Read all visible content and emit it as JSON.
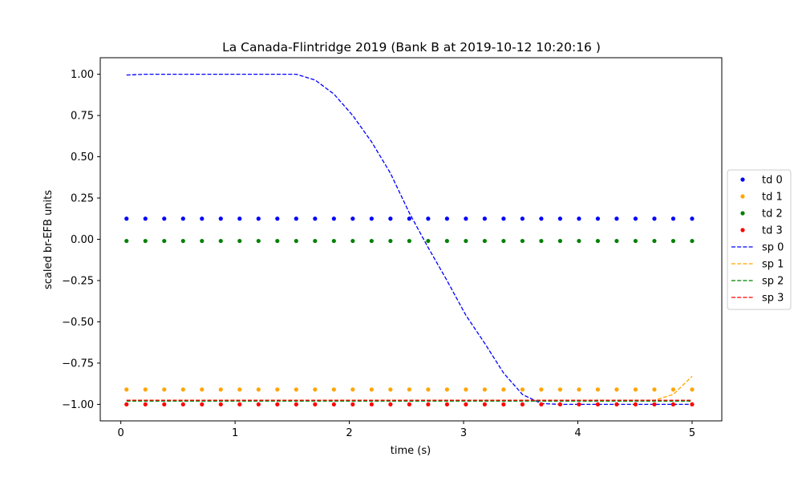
{
  "chart_data": {
    "type": "scatter",
    "title": "La Canada-Flintridge 2019 (Bank B at 2019-10-12 10:20:16 )",
    "xlabel": "time (s)",
    "ylabel": "scaled br-EFB units",
    "xlim": [
      -0.18,
      5.26
    ],
    "ylim": [
      -1.1,
      1.1
    ],
    "xticks": [
      0,
      1,
      2,
      3,
      4,
      5
    ],
    "xtick_labels": [
      "0",
      "1",
      "2",
      "3",
      "4",
      "5"
    ],
    "yticks": [
      -1.0,
      -0.75,
      -0.5,
      -0.25,
      0.0,
      0.25,
      0.5,
      0.75,
      1.0
    ],
    "ytick_labels": [
      "−1.00",
      "−0.75",
      "−0.50",
      "−0.25",
      "0.00",
      "0.25",
      "0.50",
      "0.75",
      "1.00"
    ],
    "grid": false,
    "legend_position": "right",
    "x": [
      0.05,
      0.215,
      0.38,
      0.545,
      0.71,
      0.875,
      1.04,
      1.205,
      1.37,
      1.535,
      1.7,
      1.865,
      2.03,
      2.195,
      2.36,
      2.525,
      2.69,
      2.855,
      3.02,
      3.185,
      3.35,
      3.515,
      3.68,
      3.845,
      4.01,
      4.175,
      4.34,
      4.505,
      4.67,
      4.835,
      5.0
    ],
    "series": [
      {
        "name": "td 0",
        "kind": "points",
        "color": "#0000ff",
        "y": [
          0.125,
          0.125,
          0.125,
          0.125,
          0.125,
          0.125,
          0.125,
          0.125,
          0.125,
          0.125,
          0.125,
          0.125,
          0.125,
          0.125,
          0.125,
          0.125,
          0.125,
          0.125,
          0.125,
          0.125,
          0.125,
          0.125,
          0.125,
          0.125,
          0.125,
          0.125,
          0.125,
          0.125,
          0.125,
          0.125,
          0.125
        ]
      },
      {
        "name": "td 1",
        "kind": "points",
        "color": "#ffa500",
        "y": [
          -0.91,
          -0.91,
          -0.91,
          -0.91,
          -0.91,
          -0.91,
          -0.91,
          -0.91,
          -0.91,
          -0.91,
          -0.91,
          -0.91,
          -0.91,
          -0.91,
          -0.91,
          -0.91,
          -0.91,
          -0.91,
          -0.91,
          -0.91,
          -0.91,
          -0.91,
          -0.91,
          -0.91,
          -0.91,
          -0.91,
          -0.91,
          -0.91,
          -0.91,
          -0.91,
          -0.91
        ]
      },
      {
        "name": "td 2",
        "kind": "points",
        "color": "#008000",
        "y": [
          -0.01,
          -0.01,
          -0.01,
          -0.01,
          -0.01,
          -0.01,
          -0.01,
          -0.01,
          -0.01,
          -0.01,
          -0.01,
          -0.01,
          -0.01,
          -0.01,
          -0.01,
          -0.01,
          -0.01,
          -0.01,
          -0.01,
          -0.01,
          -0.01,
          -0.01,
          -0.01,
          -0.01,
          -0.01,
          -0.01,
          -0.01,
          -0.01,
          -0.01,
          -0.01,
          -0.01
        ]
      },
      {
        "name": "td 3",
        "kind": "points",
        "color": "#ff0000",
        "y": [
          -1.0,
          -1.0,
          -1.0,
          -1.0,
          -1.0,
          -1.0,
          -1.0,
          -1.0,
          -1.0,
          -1.0,
          -1.0,
          -1.0,
          -1.0,
          -1.0,
          -1.0,
          -1.0,
          -1.0,
          -1.0,
          -1.0,
          -1.0,
          -1.0,
          -1.0,
          -1.0,
          -1.0,
          -1.0,
          -1.0,
          -1.0,
          -1.0,
          -1.0,
          -1.0,
          -1.0
        ]
      },
      {
        "name": "sp 0",
        "kind": "line",
        "color": "#0000ff",
        "y": [
          0.995,
          1.0,
          1.0,
          1.0,
          1.0,
          1.0,
          1.0,
          1.0,
          1.0,
          1.0,
          0.965,
          0.88,
          0.75,
          0.59,
          0.4,
          0.16,
          -0.05,
          -0.25,
          -0.46,
          -0.63,
          -0.81,
          -0.94,
          -0.995,
          -1.0,
          -1.0,
          -1.0,
          -1.0,
          -1.0,
          -1.0,
          -1.0,
          -1.0
        ]
      },
      {
        "name": "sp 1",
        "kind": "line",
        "color": "#ffa500",
        "y": [
          -0.975,
          -0.975,
          -0.975,
          -0.975,
          -0.975,
          -0.975,
          -0.975,
          -0.975,
          -0.975,
          -0.975,
          -0.975,
          -0.975,
          -0.975,
          -0.975,
          -0.975,
          -0.975,
          -0.975,
          -0.975,
          -0.975,
          -0.975,
          -0.975,
          -0.975,
          -0.975,
          -0.975,
          -0.975,
          -0.975,
          -0.975,
          -0.975,
          -0.975,
          -0.94,
          -0.83
        ]
      },
      {
        "name": "sp 2",
        "kind": "line",
        "color": "#008000",
        "y": [
          -0.98,
          -0.98,
          -0.98,
          -0.98,
          -0.98,
          -0.98,
          -0.98,
          -0.98,
          -0.98,
          -0.98,
          -0.98,
          -0.98,
          -0.98,
          -0.98,
          -0.98,
          -0.98,
          -0.98,
          -0.98,
          -0.98,
          -0.98,
          -0.98,
          -0.98,
          -0.98,
          -0.98,
          -0.98,
          -0.98,
          -0.98,
          -0.98,
          -0.98,
          -0.98,
          -0.98
        ]
      },
      {
        "name": "sp 3",
        "kind": "line",
        "color": "#ff0000",
        "y": [
          -0.975,
          -0.975,
          -0.975,
          -0.975,
          -0.975,
          -0.975,
          -0.975,
          -0.975,
          -0.975,
          -0.975,
          -0.975,
          -0.975,
          -0.975,
          -0.975,
          -0.975,
          -0.975,
          -0.975,
          -0.975,
          -0.975,
          -0.975,
          -0.975,
          -0.975,
          -0.975,
          -0.975,
          -0.975,
          -0.975,
          -0.975,
          -0.975,
          -0.975,
          -0.975,
          -0.975
        ]
      }
    ]
  }
}
